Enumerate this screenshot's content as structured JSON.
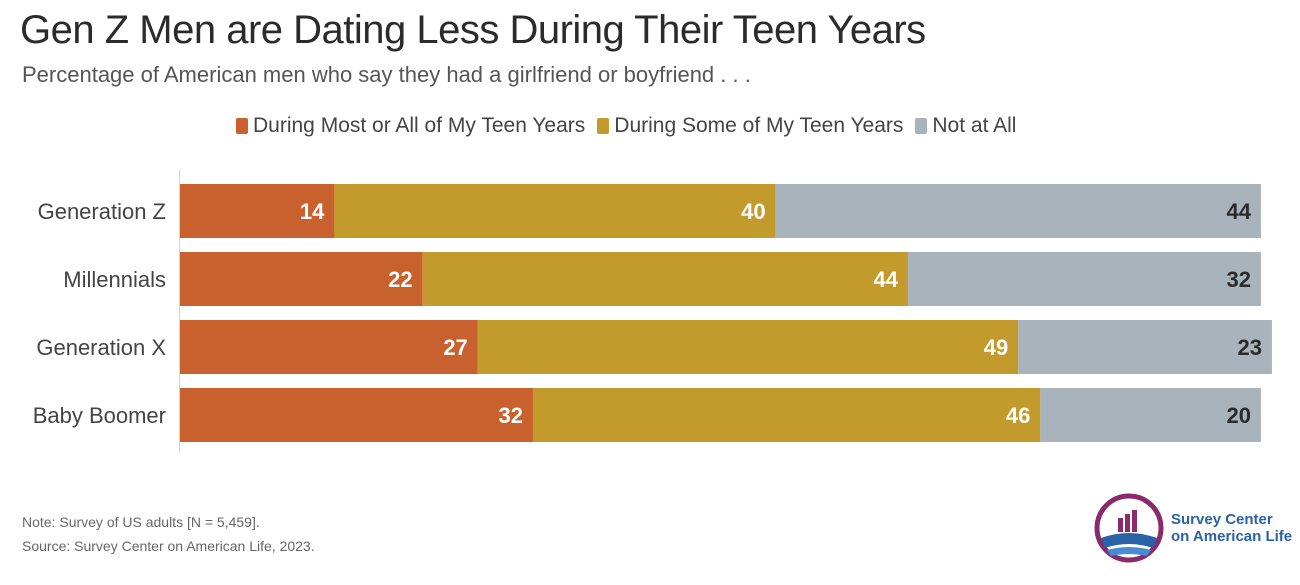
{
  "title": "Gen Z Men are Dating Less During Their Teen Years",
  "subtitle": "Percentage of American men who say they had a girlfriend or boyfriend . . .",
  "legend": [
    {
      "label": "During Most or All of My Teen Years",
      "color": "#c9612e"
    },
    {
      "label": "During Some of My Teen Years",
      "color": "#c39a2c"
    },
    {
      "label": "Not at All",
      "color": "#a9b3bb"
    }
  ],
  "chart_data": {
    "type": "bar",
    "orientation": "horizontal",
    "stacked": true,
    "categories": [
      "Generation Z",
      "Millennials",
      "Generation X",
      "Baby Boomer"
    ],
    "series": [
      {
        "name": "During Most or All of My Teen Years",
        "color": "#c9612e",
        "values": [
          14,
          22,
          27,
          32
        ]
      },
      {
        "name": "During Some of My Teen Years",
        "color": "#c39a2c",
        "values": [
          40,
          44,
          49,
          46
        ]
      },
      {
        "name": "Not at All",
        "color": "#a9b3bb",
        "values": [
          44,
          32,
          23,
          20
        ]
      }
    ],
    "xlim": [
      0,
      100
    ],
    "grid": false,
    "legend_position": "top",
    "data_labels": true
  },
  "footer": {
    "note": "Note: Survey of US adults [N = 5,459].",
    "source": "Source: Survey Center on American Life, 2023."
  },
  "logo": {
    "line1": "Survey Center",
    "line2": "on American Life",
    "icon": "bar-chart-circle-logo"
  }
}
